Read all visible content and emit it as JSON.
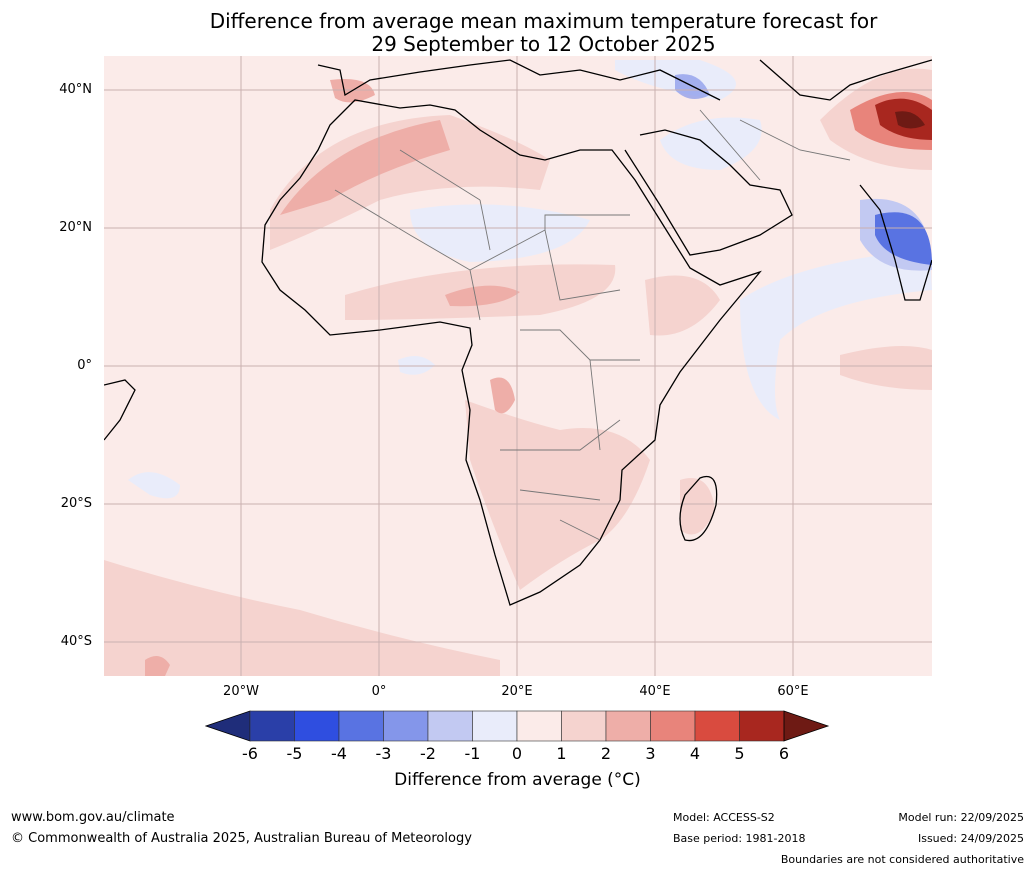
{
  "title_line1": "Difference from average mean maximum temperature forecast for",
  "title_line2": "29 September to 12 October 2025",
  "map": {
    "lat_labels": [
      "40°N",
      "20°N",
      "0°",
      "20°S",
      "40°S"
    ],
    "lon_labels": [
      "20°W",
      "0°",
      "20°E",
      "40°E",
      "60°E"
    ],
    "background_color": "#fbebe9"
  },
  "colorbar": {
    "title": "Difference from average (°C)",
    "ticks": [
      "-6",
      "-5",
      "-4",
      "-3",
      "-2",
      "-1",
      "0",
      "1",
      "2",
      "3",
      "4",
      "5",
      "6"
    ],
    "colors": [
      "#1f2d7a",
      "#2a3fa8",
      "#2f4ee0",
      "#5973e2",
      "#8496ea",
      "#c2c9f2",
      "#e9ecfa",
      "#fbebe9",
      "#f5d3cf",
      "#eeaea8",
      "#e8847b",
      "#d94b3f",
      "#a8271f",
      "#6e1a14"
    ]
  },
  "footer": {
    "website": "www.bom.gov.au/climate",
    "copyright": "© Commonwealth of Australia 2025, Australian Bureau of Meteorology",
    "model": "Model: ACCESS-S2",
    "base_period": "Base period: 1981-2018",
    "model_run": "Model run: 22/09/2025",
    "issued": "Issued: 24/09/2025",
    "disclaimer": "Boundaries are not considered authoritative"
  }
}
